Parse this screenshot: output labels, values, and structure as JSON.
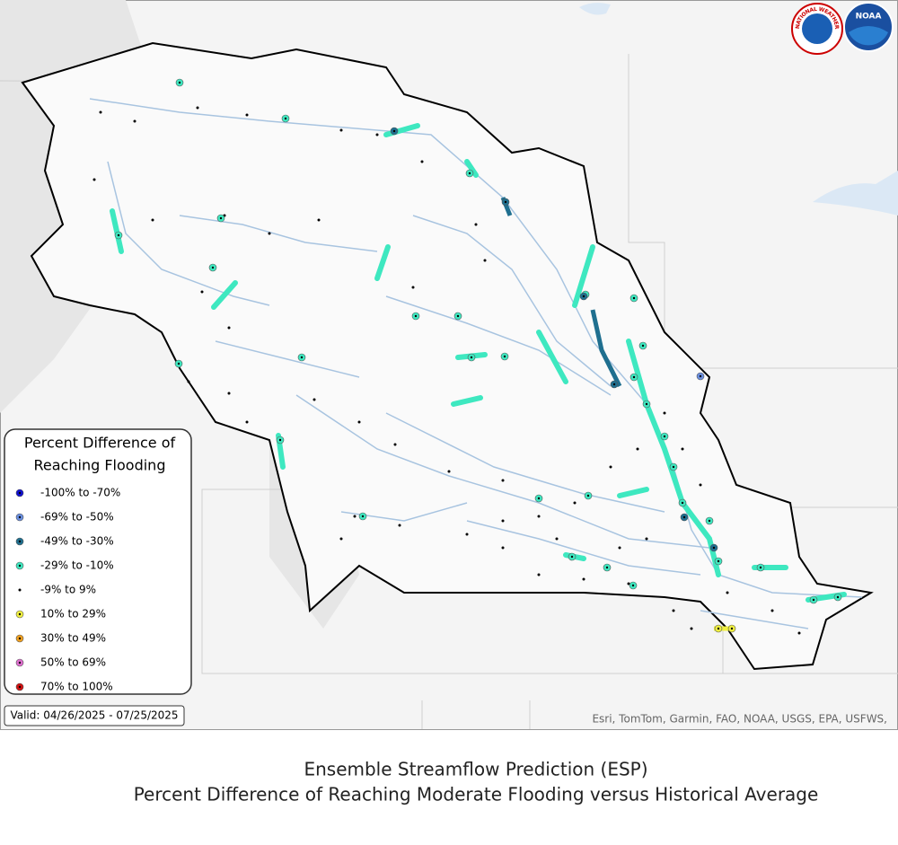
{
  "logos": {
    "nws": "NATIONAL WEATHER SERVICE",
    "noaa": "NOAA"
  },
  "legend": {
    "title_lines": [
      "Percent Difference of",
      "Reaching Flooding"
    ],
    "items": [
      {
        "label": "-100% to -70%",
        "color": "#1010d0"
      },
      {
        "label": "-69% to -50%",
        "color": "#6a8fe0"
      },
      {
        "label": "-49% to -30%",
        "color": "#1f6f8f"
      },
      {
        "label": "-29% to -10%",
        "color": "#3ee8c0"
      },
      {
        "label": "-9% to 9%",
        "color": "#000000"
      },
      {
        "label": "10% to 29%",
        "color": "#f0f040"
      },
      {
        "label": "30% to 49%",
        "color": "#f0a020"
      },
      {
        "label": "50% to 69%",
        "color": "#e070d0"
      },
      {
        "label": "70% to 100%",
        "color": "#d01010"
      }
    ],
    "valid": "Valid: 04/26/2025 - 07/25/2025"
  },
  "map": {
    "attribution": "Esri, TomTom, Garmin, FAO, NOAA, USGS, EPA, USFWS,"
  },
  "caption": {
    "line1": "Ensemble Streamflow Prediction (ESP)",
    "line2": "Percent Difference of Reaching Moderate Flooding versus Historical Average"
  }
}
